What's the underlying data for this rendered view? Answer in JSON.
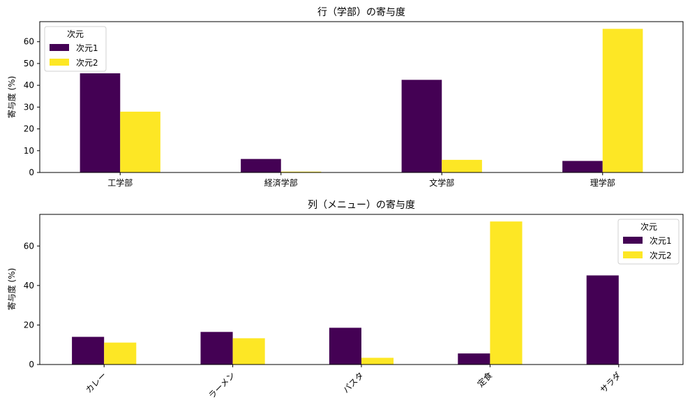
{
  "series_colors": [
    "#440154",
    "#fde725"
  ],
  "chart_data": [
    {
      "type": "bar",
      "title": "行（学部）の寄与度",
      "xlabel": "",
      "ylabel": "寄与度 (%)",
      "categories": [
        "工学部",
        "経済学部",
        "文学部",
        "理学部"
      ],
      "series": [
        {
          "name": "次元1",
          "values": [
            45.5,
            6.2,
            42.5,
            5.3
          ]
        },
        {
          "name": "次元2",
          "values": [
            27.9,
            0.4,
            5.8,
            65.9
          ]
        }
      ],
      "ylim": [
        0,
        69.2
      ],
      "yticks": [
        0,
        10,
        20,
        30,
        40,
        50,
        60
      ],
      "legend": {
        "title": "次元",
        "placement": "upper left"
      },
      "xtick_rotation": 0,
      "grid": false
    },
    {
      "type": "bar",
      "title": "列（メニュー）の寄与度",
      "xlabel": "",
      "ylabel": "寄与度 (%)",
      "categories": [
        "カレー",
        "ラーメン",
        "パスタ",
        "定食",
        "サラダ"
      ],
      "series": [
        {
          "name": "次元1",
          "values": [
            14.0,
            16.5,
            18.6,
            5.6,
            45.1
          ]
        },
        {
          "name": "次元2",
          "values": [
            11.1,
            13.3,
            3.4,
            72.4,
            0.0
          ]
        }
      ],
      "ylim": [
        0,
        76.0
      ],
      "yticks": [
        0,
        20,
        40,
        60
      ],
      "legend": {
        "title": "次元",
        "placement": "upper right"
      },
      "xtick_rotation": 45,
      "grid": false
    }
  ]
}
